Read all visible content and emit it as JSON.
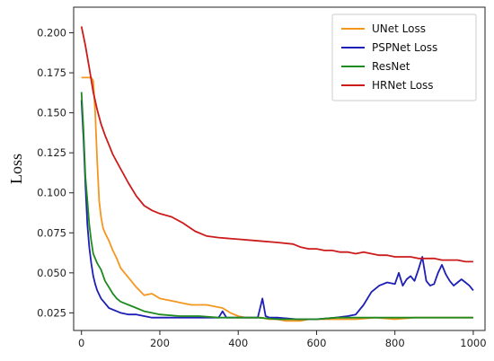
{
  "chart_data": {
    "type": "line",
    "title": "",
    "xlabel": "",
    "ylabel": "Loss",
    "xlim": [
      -20,
      1030
    ],
    "ylim": [
      0.014,
      0.216
    ],
    "xticks": [
      0,
      200,
      400,
      600,
      800,
      1000
    ],
    "yticks": [
      0.025,
      0.05,
      0.075,
      0.1,
      0.125,
      0.15,
      0.175,
      0.2
    ],
    "xtick_labels": [
      "0",
      "200",
      "400",
      "600",
      "800",
      "1000"
    ],
    "ytick_labels": [
      "0.025",
      "0.050",
      "0.075",
      "0.100",
      "0.125",
      "0.150",
      "0.175",
      "0.200"
    ],
    "grid": false,
    "legend_position": "top-right",
    "series": [
      {
        "name": "UNet Loss",
        "color": "#f5961f",
        "x": [
          0,
          15,
          25,
          30,
          35,
          40,
          45,
          50,
          55,
          60,
          70,
          80,
          90,
          100,
          120,
          140,
          160,
          180,
          200,
          220,
          240,
          260,
          280,
          300,
          320,
          340,
          360,
          380,
          400,
          420,
          440,
          460,
          480,
          500,
          520,
          540,
          560,
          580,
          600,
          650,
          700,
          750,
          800,
          850,
          900,
          950,
          1000
        ],
        "y": [
          0.172,
          0.172,
          0.172,
          0.17,
          0.15,
          0.12,
          0.095,
          0.085,
          0.078,
          0.075,
          0.07,
          0.064,
          0.059,
          0.053,
          0.047,
          0.041,
          0.036,
          0.037,
          0.034,
          0.033,
          0.032,
          0.031,
          0.03,
          0.03,
          0.03,
          0.029,
          0.028,
          0.025,
          0.023,
          0.022,
          0.022,
          0.022,
          0.021,
          0.021,
          0.02,
          0.02,
          0.02,
          0.021,
          0.021,
          0.021,
          0.021,
          0.022,
          0.021,
          0.022,
          0.022,
          0.022,
          0.022
        ]
      },
      {
        "name": "PSPNet Loss",
        "color": "#1d1fb5",
        "x": [
          0,
          5,
          10,
          15,
          20,
          25,
          30,
          35,
          40,
          50,
          60,
          70,
          80,
          90,
          100,
          120,
          140,
          160,
          180,
          200,
          250,
          300,
          350,
          360,
          370,
          400,
          450,
          462,
          470,
          480,
          500,
          550,
          600,
          650,
          680,
          700,
          720,
          740,
          760,
          780,
          800,
          810,
          820,
          830,
          840,
          850,
          860,
          870,
          880,
          890,
          900,
          910,
          920,
          930,
          940,
          950,
          960,
          970,
          980,
          990,
          1000
        ],
        "y": [
          0.158,
          0.135,
          0.105,
          0.08,
          0.066,
          0.056,
          0.048,
          0.043,
          0.039,
          0.034,
          0.031,
          0.028,
          0.027,
          0.026,
          0.025,
          0.024,
          0.024,
          0.023,
          0.022,
          0.022,
          0.022,
          0.022,
          0.022,
          0.026,
          0.022,
          0.022,
          0.022,
          0.034,
          0.023,
          0.022,
          0.022,
          0.021,
          0.021,
          0.022,
          0.023,
          0.024,
          0.03,
          0.038,
          0.042,
          0.044,
          0.043,
          0.05,
          0.042,
          0.046,
          0.048,
          0.045,
          0.052,
          0.06,
          0.045,
          0.042,
          0.043,
          0.05,
          0.055,
          0.049,
          0.045,
          0.042,
          0.044,
          0.046,
          0.044,
          0.042,
          0.039
        ]
      },
      {
        "name": "ResNet",
        "color": "#1f8a1f",
        "x": [
          0,
          5,
          10,
          15,
          20,
          25,
          30,
          40,
          50,
          60,
          70,
          80,
          90,
          100,
          120,
          140,
          160,
          180,
          200,
          250,
          300,
          350,
          400,
          450,
          500,
          550,
          600,
          650,
          700,
          750,
          800,
          850,
          900,
          950,
          1000
        ],
        "y": [
          0.163,
          0.14,
          0.11,
          0.095,
          0.08,
          0.07,
          0.062,
          0.056,
          0.052,
          0.045,
          0.041,
          0.037,
          0.034,
          0.032,
          0.03,
          0.028,
          0.026,
          0.025,
          0.024,
          0.023,
          0.023,
          0.022,
          0.022,
          0.022,
          0.021,
          0.021,
          0.021,
          0.022,
          0.022,
          0.022,
          0.022,
          0.022,
          0.022,
          0.022,
          0.022
        ]
      },
      {
        "name": "HRNet Loss",
        "color": "#cc1b1b",
        "x": [
          0,
          10,
          20,
          30,
          40,
          50,
          60,
          70,
          80,
          100,
          120,
          140,
          160,
          180,
          200,
          230,
          260,
          290,
          320,
          350,
          400,
          450,
          500,
          540,
          560,
          580,
          600,
          620,
          640,
          660,
          680,
          700,
          720,
          740,
          760,
          780,
          800,
          820,
          840,
          860,
          880,
          900,
          920,
          940,
          960,
          980,
          1000
        ],
        "y": [
          0.204,
          0.192,
          0.178,
          0.163,
          0.152,
          0.143,
          0.136,
          0.13,
          0.124,
          0.115,
          0.106,
          0.098,
          0.092,
          0.089,
          0.087,
          0.085,
          0.081,
          0.076,
          0.073,
          0.072,
          0.071,
          0.07,
          0.069,
          0.068,
          0.066,
          0.065,
          0.065,
          0.064,
          0.064,
          0.063,
          0.063,
          0.062,
          0.063,
          0.062,
          0.061,
          0.061,
          0.06,
          0.06,
          0.06,
          0.059,
          0.059,
          0.059,
          0.058,
          0.058,
          0.058,
          0.057,
          0.057
        ]
      }
    ]
  }
}
